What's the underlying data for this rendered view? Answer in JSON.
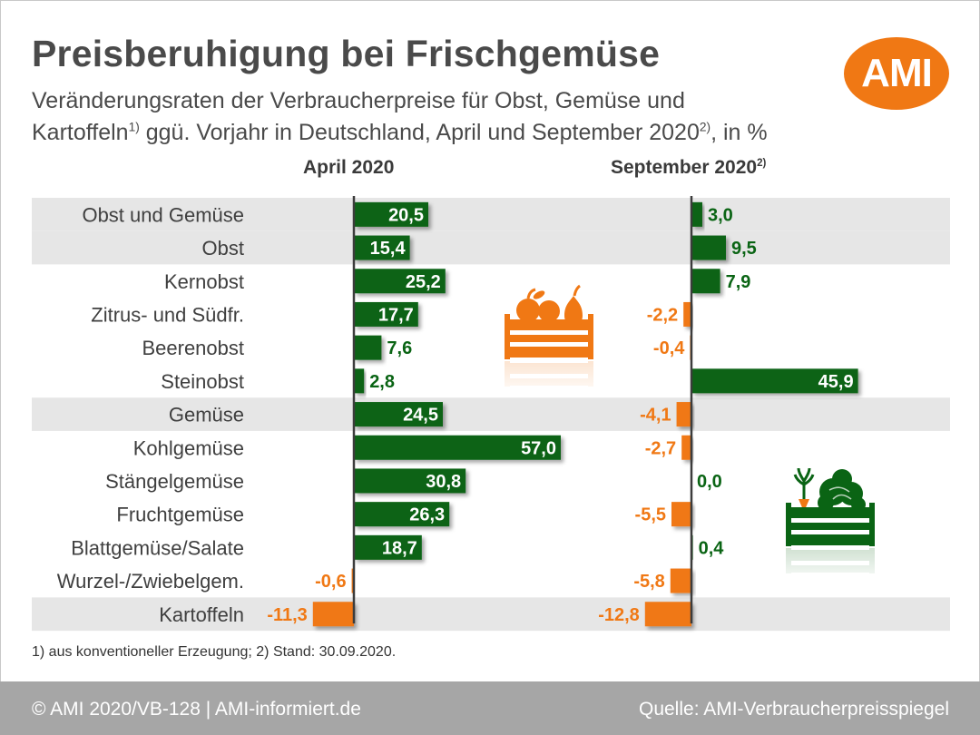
{
  "header": {
    "title": "Preisberuhigung bei Frischgemüse",
    "subtitle_line1": "Veränderungsraten der Verbraucherpreise für Obst, Gemüse und",
    "subtitle_line2a": "Kartoffeln",
    "subtitle_sup1": "1)",
    "subtitle_line2b": " ggü. Vorjahr in Deutschland, April und September 2020",
    "subtitle_sup2": "2)",
    "subtitle_line2c": ", in %"
  },
  "logo": {
    "text": "AMI"
  },
  "columns": {
    "april_label": "April 2020",
    "september_label": "September 2020",
    "september_sup": "2)"
  },
  "chart_data": {
    "type": "bar",
    "orientation": "horizontal",
    "decimal_separator": ",",
    "categories": [
      "Obst und Gemüse",
      "Obst",
      "Kernobst",
      "Zitrus- und Südfr.",
      "Beerenobst",
      "Steinobst",
      "Gemüse",
      "Kohlgemüse",
      "Stängelgemüse",
      "Fruchtgemüse",
      "Blattgemüse/Salate",
      "Wurzel-/Zwiebelgem.",
      "Kartoffeln"
    ],
    "shaded_rows": [
      0,
      1,
      6,
      12
    ],
    "series": [
      {
        "name": "April 2020",
        "values": [
          20.5,
          15.4,
          25.2,
          17.7,
          7.6,
          2.8,
          24.5,
          57.0,
          30.8,
          26.3,
          18.7,
          -0.6,
          -11.3
        ]
      },
      {
        "name": "September 2020",
        "values": [
          3.0,
          9.5,
          7.9,
          -2.2,
          -0.4,
          45.9,
          -4.1,
          -2.7,
          0.0,
          -5.5,
          0.4,
          -5.8,
          -12.8
        ]
      }
    ],
    "colors": {
      "positive": "#0a6414",
      "negative": "#f07814",
      "row_shade": "#e6e6e6",
      "axis": "#3c3c3c"
    }
  },
  "footnote": "1) aus konventioneller Erzeugung; 2) Stand: 30.09.2020.",
  "footer": {
    "left": "© AMI 2020/VB-128 | AMI-informiert.de",
    "right": "Quelle: AMI-Verbraucherpreisspiegel"
  },
  "icons": [
    "fruit-crate-icon",
    "vegetable-crate-icon"
  ]
}
